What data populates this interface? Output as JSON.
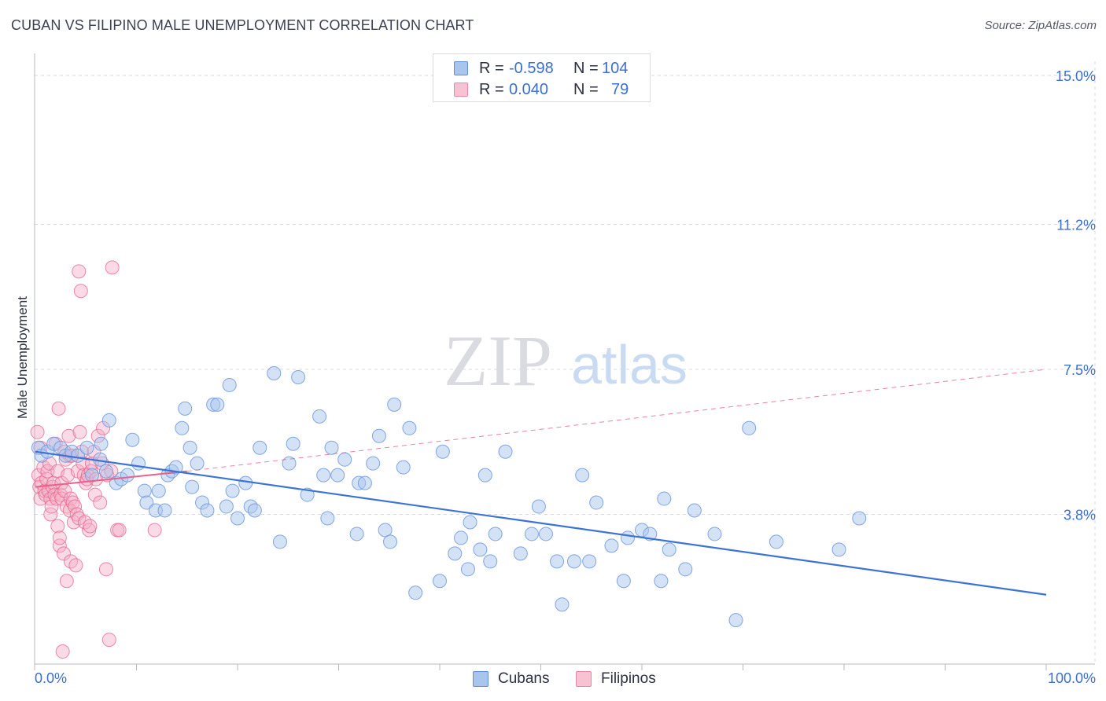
{
  "header": {
    "title": "CUBAN VS FILIPINO MALE UNEMPLOYMENT CORRELATION CHART",
    "source": "Source: ZipAtlas.com"
  },
  "watermark": {
    "zip": "ZIP",
    "atlas": "atlas"
  },
  "colors": {
    "blue": "#3b74d6",
    "blue_fill": "#a9c5ee",
    "pink": "#e8628c",
    "pink_fill": "#f4afc5",
    "grid": "#d5d8de",
    "tick_label": "#3b6fd0"
  },
  "legend_top": {
    "rows": [
      {
        "r_label": "R =",
        "r_value": "-0.598",
        "n_label": "N =",
        "n_value": "104"
      },
      {
        "r_label": "R =",
        "r_value": "0.040",
        "n_label": "N =",
        "n_value": "79"
      }
    ]
  },
  "legend_bottom": {
    "items": [
      {
        "label": "Cubans"
      },
      {
        "label": "Filipinos"
      }
    ]
  },
  "chart_data": {
    "type": "scatter",
    "title": "CUBAN VS FILIPINO MALE UNEMPLOYMENT CORRELATION CHART",
    "xlabel": "",
    "ylabel": "Male Unemployment",
    "xlim": [
      0,
      100
    ],
    "ylim": [
      0,
      15.5
    ],
    "x_tick_labels": [
      "0.0%",
      "100.0%"
    ],
    "y_ticks": [
      3.8,
      7.5,
      11.2,
      15.0
    ],
    "y_tick_labels": [
      "3.8%",
      "7.5%",
      "11.2%",
      "15.0%"
    ],
    "grid": "horizontal dashed",
    "legend_position": "top-center",
    "series": [
      {
        "name": "Cubans",
        "color": "#3b74d6",
        "R": -0.598,
        "N": 104,
        "trend": {
          "x": [
            0,
            100
          ],
          "y": [
            5.4,
            1.75
          ],
          "style": "solid"
        },
        "points": [
          [
            0.3,
            5.5
          ],
          [
            0.6,
            5.3
          ],
          [
            1.2,
            5.4
          ],
          [
            1.8,
            5.6
          ],
          [
            2.5,
            5.5
          ],
          [
            3.0,
            5.3
          ],
          [
            3.6,
            5.4
          ],
          [
            4.2,
            5.3
          ],
          [
            5.1,
            5.5
          ],
          [
            5.6,
            4.8
          ],
          [
            6.4,
            5.2
          ],
          [
            7.0,
            4.9
          ],
          [
            6.5,
            5.6
          ],
          [
            7.3,
            6.2
          ],
          [
            8.0,
            4.6
          ],
          [
            8.5,
            4.7
          ],
          [
            9.1,
            4.8
          ],
          [
            9.6,
            5.7
          ],
          [
            10.2,
            5.1
          ],
          [
            10.8,
            4.4
          ],
          [
            11.0,
            4.1
          ],
          [
            11.9,
            3.9
          ],
          [
            12.2,
            4.4
          ],
          [
            12.8,
            3.9
          ],
          [
            13.1,
            4.8
          ],
          [
            13.5,
            4.9
          ],
          [
            13.9,
            5.0
          ],
          [
            14.5,
            6.0
          ],
          [
            14.8,
            6.5
          ],
          [
            15.3,
            5.5
          ],
          [
            15.5,
            4.5
          ],
          [
            16.0,
            5.1
          ],
          [
            16.5,
            4.1
          ],
          [
            17.0,
            3.9
          ],
          [
            17.6,
            6.6
          ],
          [
            18.0,
            6.6
          ],
          [
            18.9,
            4.0
          ],
          [
            19.2,
            7.1
          ],
          [
            19.5,
            4.4
          ],
          [
            20.0,
            3.7
          ],
          [
            20.8,
            4.6
          ],
          [
            21.3,
            4.0
          ],
          [
            21.7,
            3.9
          ],
          [
            22.2,
            5.5
          ],
          [
            23.6,
            7.4
          ],
          [
            24.2,
            3.1
          ],
          [
            25.1,
            5.1
          ],
          [
            25.5,
            5.6
          ],
          [
            26.0,
            7.3
          ],
          [
            26.9,
            4.3
          ],
          [
            28.1,
            6.3
          ],
          [
            28.5,
            4.8
          ],
          [
            28.9,
            3.7
          ],
          [
            29.3,
            5.5
          ],
          [
            29.9,
            4.8
          ],
          [
            30.6,
            5.2
          ],
          [
            31.8,
            3.3
          ],
          [
            32.0,
            4.6
          ],
          [
            32.6,
            4.6
          ],
          [
            33.4,
            5.1
          ],
          [
            34.0,
            5.8
          ],
          [
            34.6,
            3.4
          ],
          [
            35.1,
            3.1
          ],
          [
            35.5,
            6.6
          ],
          [
            36.4,
            5.0
          ],
          [
            37.0,
            6.0
          ],
          [
            37.6,
            1.8
          ],
          [
            40.0,
            2.1
          ],
          [
            40.3,
            5.4
          ],
          [
            41.5,
            2.8
          ],
          [
            42.1,
            3.2
          ],
          [
            42.8,
            2.4
          ],
          [
            43.0,
            3.6
          ],
          [
            44.0,
            2.9
          ],
          [
            44.5,
            4.8
          ],
          [
            45.0,
            2.6
          ],
          [
            45.5,
            3.3
          ],
          [
            46.5,
            5.4
          ],
          [
            48.0,
            2.8
          ],
          [
            49.1,
            3.3
          ],
          [
            49.8,
            4.0
          ],
          [
            50.5,
            3.3
          ],
          [
            51.6,
            2.6
          ],
          [
            52.1,
            1.5
          ],
          [
            53.3,
            2.6
          ],
          [
            54.1,
            4.8
          ],
          [
            54.8,
            2.6
          ],
          [
            55.5,
            4.1
          ],
          [
            57.0,
            3.0
          ],
          [
            58.2,
            2.1
          ],
          [
            58.6,
            3.2
          ],
          [
            60.0,
            3.4
          ],
          [
            60.8,
            3.3
          ],
          [
            61.9,
            2.1
          ],
          [
            62.2,
            4.2
          ],
          [
            62.7,
            2.9
          ],
          [
            64.3,
            2.4
          ],
          [
            65.2,
            3.9
          ],
          [
            67.2,
            3.3
          ],
          [
            69.3,
            1.1
          ],
          [
            70.6,
            6.0
          ],
          [
            73.3,
            3.1
          ],
          [
            79.5,
            2.9
          ],
          [
            81.5,
            3.7
          ]
        ]
      },
      {
        "name": "Filipinos",
        "color": "#e8628c",
        "R": 0.04,
        "N": 79,
        "trend": {
          "x": [
            0,
            15
          ],
          "y": [
            4.5,
            4.9
          ],
          "style": "solid"
        },
        "trend_extension": {
          "x": [
            15,
            100
          ],
          "y": [
            4.9,
            7.5
          ],
          "style": "dashed"
        },
        "points": [
          [
            0.2,
            5.9
          ],
          [
            0.3,
            4.8
          ],
          [
            0.4,
            4.5
          ],
          [
            0.5,
            5.5
          ],
          [
            0.5,
            4.2
          ],
          [
            0.6,
            4.6
          ],
          [
            0.8,
            5.0
          ],
          [
            0.9,
            4.4
          ],
          [
            1.0,
            4.3
          ],
          [
            1.1,
            4.7
          ],
          [
            1.2,
            4.9
          ],
          [
            1.3,
            4.4
          ],
          [
            1.4,
            5.1
          ],
          [
            1.5,
            4.2
          ],
          [
            1.5,
            3.8
          ],
          [
            1.6,
            4.0
          ],
          [
            1.7,
            4.5
          ],
          [
            1.8,
            4.6
          ],
          [
            1.9,
            4.3
          ],
          [
            2.0,
            5.6
          ],
          [
            2.1,
            4.2
          ],
          [
            2.2,
            3.5
          ],
          [
            2.2,
            4.9
          ],
          [
            2.3,
            6.5
          ],
          [
            2.4,
            3.0
          ],
          [
            2.4,
            3.2
          ],
          [
            2.5,
            4.3
          ],
          [
            2.6,
            4.6
          ],
          [
            2.6,
            4.2
          ],
          [
            2.7,
            0.3
          ],
          [
            2.8,
            2.8
          ],
          [
            2.9,
            4.4
          ],
          [
            2.9,
            5.4
          ],
          [
            3.0,
            5.2
          ],
          [
            3.1,
            4.0
          ],
          [
            3.1,
            2.1
          ],
          [
            3.2,
            4.8
          ],
          [
            3.3,
            5.8
          ],
          [
            3.4,
            5.3
          ],
          [
            3.4,
            3.9
          ],
          [
            3.5,
            4.2
          ],
          [
            3.5,
            2.6
          ],
          [
            3.6,
            5.3
          ],
          [
            3.7,
            4.1
          ],
          [
            3.8,
            3.6
          ],
          [
            3.9,
            4.0
          ],
          [
            4.0,
            2.5
          ],
          [
            4.1,
            3.8
          ],
          [
            4.2,
            4.9
          ],
          [
            4.3,
            3.7
          ],
          [
            4.3,
            10.0
          ],
          [
            4.4,
            5.9
          ],
          [
            4.5,
            9.5
          ],
          [
            4.6,
            5.4
          ],
          [
            4.7,
            5.1
          ],
          [
            4.8,
            4.8
          ],
          [
            4.9,
            3.6
          ],
          [
            5.0,
            4.6
          ],
          [
            5.1,
            4.7
          ],
          [
            5.2,
            4.8
          ],
          [
            5.3,
            3.4
          ],
          [
            5.4,
            3.5
          ],
          [
            5.5,
            4.9
          ],
          [
            5.6,
            5.1
          ],
          [
            5.8,
            5.4
          ],
          [
            5.9,
            4.3
          ],
          [
            6.0,
            4.7
          ],
          [
            6.2,
            5.8
          ],
          [
            6.4,
            4.1
          ],
          [
            6.6,
            5.1
          ],
          [
            6.7,
            6.0
          ],
          [
            7.0,
            2.4
          ],
          [
            7.1,
            4.8
          ],
          [
            7.3,
            0.6
          ],
          [
            7.5,
            4.9
          ],
          [
            8.1,
            3.4
          ],
          [
            8.3,
            3.4
          ],
          [
            7.6,
            10.1
          ],
          [
            11.8,
            3.4
          ]
        ]
      }
    ]
  }
}
